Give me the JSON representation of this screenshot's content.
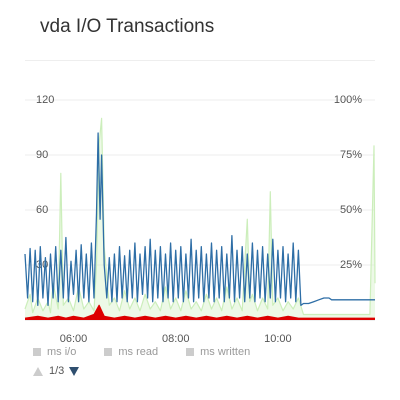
{
  "header": {
    "title": "vda I/O Transactions"
  },
  "chart_data": {
    "type": "line",
    "title": "vda I/O Transactions",
    "y_left": {
      "range": [
        0,
        120
      ],
      "ticks": [
        "120",
        "90",
        "60",
        "30"
      ],
      "tick_values": [
        120,
        90,
        60,
        30
      ]
    },
    "y_right": {
      "range": [
        0,
        100
      ],
      "ticks": [
        "100%",
        "75%",
        "50%",
        "25%"
      ],
      "tick_values": [
        100,
        75,
        50,
        25
      ]
    },
    "x_axis": {
      "type": "time",
      "ticks": [
        "06:00",
        "08:00",
        "10:00"
      ],
      "tick_hours": [
        6,
        8,
        10
      ],
      "range_hours": [
        5.05,
        11.9
      ]
    },
    "grid": true,
    "legend_placement": "bottom",
    "series": [
      {
        "name": "ms i/o",
        "color": "#2e6ea6",
        "axis": "left",
        "points": [
          [
            5.05,
            36
          ],
          [
            5.1,
            12
          ],
          [
            5.15,
            39
          ],
          [
            5.2,
            10
          ],
          [
            5.25,
            38
          ],
          [
            5.3,
            8
          ],
          [
            5.35,
            40
          ],
          [
            5.4,
            12
          ],
          [
            5.45,
            34
          ],
          [
            5.5,
            8
          ],
          [
            5.55,
            36
          ],
          [
            5.6,
            12
          ],
          [
            5.65,
            40
          ],
          [
            5.7,
            10
          ],
          [
            5.75,
            38
          ],
          [
            5.8,
            12
          ],
          [
            5.85,
            45
          ],
          [
            5.9,
            10
          ],
          [
            5.95,
            32
          ],
          [
            6.0,
            14
          ],
          [
            6.05,
            38
          ],
          [
            6.1,
            10
          ],
          [
            6.15,
            41
          ],
          [
            6.2,
            12
          ],
          [
            6.25,
            36
          ],
          [
            6.3,
            10
          ],
          [
            6.35,
            42
          ],
          [
            6.4,
            12
          ],
          [
            6.45,
            58
          ],
          [
            6.48,
            102
          ],
          [
            6.52,
            55
          ],
          [
            6.55,
            90
          ],
          [
            6.6,
            30
          ],
          [
            6.65,
            12
          ],
          [
            6.7,
            34
          ],
          [
            6.75,
            10
          ],
          [
            6.8,
            36
          ],
          [
            6.85,
            10
          ],
          [
            6.9,
            40
          ],
          [
            6.95,
            12
          ],
          [
            7.0,
            35
          ],
          [
            7.05,
            10
          ],
          [
            7.1,
            38
          ],
          [
            7.15,
            12
          ],
          [
            7.2,
            42
          ],
          [
            7.25,
            10
          ],
          [
            7.3,
            36
          ],
          [
            7.35,
            14
          ],
          [
            7.4,
            40
          ],
          [
            7.45,
            12
          ],
          [
            7.5,
            44
          ],
          [
            7.55,
            10
          ],
          [
            7.6,
            38
          ],
          [
            7.65,
            12
          ],
          [
            7.7,
            40
          ],
          [
            7.75,
            10
          ],
          [
            7.8,
            36
          ],
          [
            7.85,
            12
          ],
          [
            7.9,
            42
          ],
          [
            7.95,
            10
          ],
          [
            8.0,
            38
          ],
          [
            8.05,
            12
          ],
          [
            8.1,
            40
          ],
          [
            8.15,
            10
          ],
          [
            8.2,
            36
          ],
          [
            8.25,
            12
          ],
          [
            8.3,
            44
          ],
          [
            8.35,
            10
          ],
          [
            8.4,
            38
          ],
          [
            8.45,
            12
          ],
          [
            8.5,
            40
          ],
          [
            8.55,
            10
          ],
          [
            8.6,
            36
          ],
          [
            8.65,
            12
          ],
          [
            8.7,
            42
          ],
          [
            8.75,
            10
          ],
          [
            8.8,
            38
          ],
          [
            8.85,
            12
          ],
          [
            8.9,
            40
          ],
          [
            8.95,
            10
          ],
          [
            9.0,
            36
          ],
          [
            9.05,
            12
          ],
          [
            9.1,
            46
          ],
          [
            9.15,
            10
          ],
          [
            9.2,
            38
          ],
          [
            9.25,
            12
          ],
          [
            9.3,
            40
          ],
          [
            9.35,
            10
          ],
          [
            9.4,
            36
          ],
          [
            9.45,
            12
          ],
          [
            9.5,
            42
          ],
          [
            9.55,
            10
          ],
          [
            9.6,
            38
          ],
          [
            9.65,
            12
          ],
          [
            9.7,
            40
          ],
          [
            9.75,
            10
          ],
          [
            9.8,
            36
          ],
          [
            9.85,
            12
          ],
          [
            9.9,
            44
          ],
          [
            9.95,
            10
          ],
          [
            10.0,
            38
          ],
          [
            10.05,
            12
          ],
          [
            10.1,
            40
          ],
          [
            10.15,
            10
          ],
          [
            10.2,
            36
          ],
          [
            10.25,
            12
          ],
          [
            10.3,
            42
          ],
          [
            10.35,
            10
          ],
          [
            10.4,
            38
          ],
          [
            10.45,
            8
          ],
          [
            10.5,
            9
          ],
          [
            10.6,
            9
          ],
          [
            10.7,
            10
          ],
          [
            10.8,
            11
          ],
          [
            10.9,
            12
          ],
          [
            11.0,
            12
          ],
          [
            11.05,
            11
          ],
          [
            11.9,
            11
          ]
        ]
      },
      {
        "name": "ms read",
        "color": "#cceebb",
        "axis": "left",
        "points": [
          [
            5.05,
            6
          ],
          [
            5.15,
            14
          ],
          [
            5.2,
            4
          ],
          [
            5.3,
            12
          ],
          [
            5.4,
            5
          ],
          [
            5.5,
            10
          ],
          [
            5.55,
            4
          ],
          [
            5.6,
            20
          ],
          [
            5.7,
            6
          ],
          [
            5.75,
            80
          ],
          [
            5.8,
            8
          ],
          [
            5.9,
            12
          ],
          [
            6.0,
            5
          ],
          [
            6.1,
            18
          ],
          [
            6.2,
            6
          ],
          [
            6.3,
            10
          ],
          [
            6.4,
            5
          ],
          [
            6.45,
            30
          ],
          [
            6.5,
            96
          ],
          [
            6.55,
            110
          ],
          [
            6.6,
            40
          ],
          [
            6.7,
            8
          ],
          [
            6.8,
            12
          ],
          [
            6.9,
            5
          ],
          [
            7.0,
            16
          ],
          [
            7.1,
            6
          ],
          [
            7.2,
            12
          ],
          [
            7.3,
            5
          ],
          [
            7.4,
            14
          ],
          [
            7.5,
            6
          ],
          [
            7.6,
            10
          ],
          [
            7.7,
            5
          ],
          [
            7.8,
            18
          ],
          [
            7.9,
            6
          ],
          [
            8.0,
            12
          ],
          [
            8.1,
            5
          ],
          [
            8.2,
            16
          ],
          [
            8.3,
            6
          ],
          [
            8.4,
            10
          ],
          [
            8.5,
            5
          ],
          [
            8.6,
            14
          ],
          [
            8.7,
            6
          ],
          [
            8.8,
            12
          ],
          [
            8.9,
            5
          ],
          [
            9.0,
            18
          ],
          [
            9.1,
            6
          ],
          [
            9.2,
            12
          ],
          [
            9.3,
            5
          ],
          [
            9.4,
            55
          ],
          [
            9.45,
            10
          ],
          [
            9.5,
            14
          ],
          [
            9.6,
            5
          ],
          [
            9.7,
            12
          ],
          [
            9.8,
            6
          ],
          [
            9.85,
            70
          ],
          [
            9.9,
            8
          ],
          [
            10.0,
            12
          ],
          [
            10.1,
            5
          ],
          [
            10.2,
            10
          ],
          [
            10.3,
            6
          ],
          [
            10.4,
            12
          ],
          [
            10.5,
            3
          ],
          [
            10.7,
            3
          ],
          [
            10.9,
            3
          ],
          [
            11.0,
            3
          ],
          [
            11.2,
            3
          ],
          [
            11.4,
            3
          ],
          [
            11.6,
            3
          ],
          [
            11.8,
            3
          ],
          [
            11.88,
            95
          ],
          [
            11.9,
            20
          ]
        ]
      },
      {
        "name": "ms written",
        "color": "#dd0000",
        "axis": "left",
        "points": [
          [
            5.05,
            1
          ],
          [
            5.3,
            2
          ],
          [
            5.5,
            1
          ],
          [
            5.7,
            2
          ],
          [
            5.85,
            1
          ],
          [
            6.0,
            2
          ],
          [
            6.2,
            1
          ],
          [
            6.4,
            3
          ],
          [
            6.5,
            8
          ],
          [
            6.55,
            5
          ],
          [
            6.6,
            2
          ],
          [
            6.8,
            1
          ],
          [
            7.0,
            2
          ],
          [
            7.2,
            1
          ],
          [
            7.4,
            2
          ],
          [
            7.6,
            1
          ],
          [
            7.8,
            2
          ],
          [
            8.0,
            1
          ],
          [
            8.2,
            2
          ],
          [
            8.4,
            1
          ],
          [
            8.6,
            2
          ],
          [
            8.8,
            1
          ],
          [
            9.0,
            2
          ],
          [
            9.2,
            1
          ],
          [
            9.4,
            2
          ],
          [
            9.6,
            1
          ],
          [
            9.8,
            2
          ],
          [
            10.0,
            1
          ],
          [
            10.2,
            2
          ],
          [
            10.4,
            1
          ],
          [
            10.6,
            1
          ],
          [
            10.8,
            1
          ],
          [
            11.0,
            1
          ],
          [
            11.2,
            1
          ],
          [
            11.4,
            1
          ],
          [
            11.6,
            1
          ],
          [
            11.9,
            1
          ]
        ]
      }
    ]
  },
  "legend": {
    "items": [
      {
        "label": "ms i/o",
        "swatch_color": "#cccccc"
      },
      {
        "label": "ms read",
        "swatch_color": "#cccccc"
      },
      {
        "label": "ms written",
        "swatch_color": "#cccccc"
      }
    ]
  },
  "pager": {
    "label": "1/3",
    "prev_icon": "triangle-up-icon",
    "next_icon": "triangle-down-icon"
  }
}
